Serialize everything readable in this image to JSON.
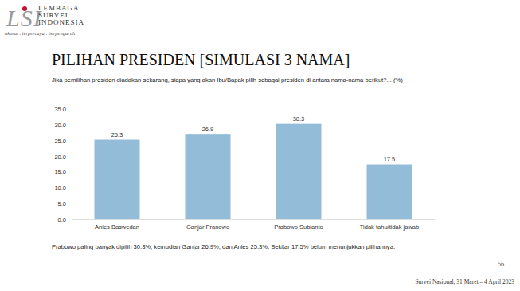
{
  "header": {
    "logo": "LSI",
    "org_name": [
      "LEMBAGA",
      "SURVEI",
      "INDONESIA"
    ],
    "tagline": "akurat . terpercaya . berpengaruh"
  },
  "chart_data": {
    "type": "bar",
    "title": "PILIHAN PRESIDEN [SIMULASI 3 NAMA]",
    "subtitle": "Jika pemilihan presiden diadakan sekarang, siapa yang akan Ibu/Bapak pilih sebagai presiden di antara nama-nama berikut?... (%)",
    "categories": [
      "Anies Baswedan",
      "Ganjar Pranowo",
      "Prabowo Subianto",
      "Tidak tahu/tidak jawab"
    ],
    "values": [
      25.3,
      26.9,
      30.3,
      17.5
    ],
    "color": "#93bcd8",
    "ylim": [
      0,
      35
    ],
    "yticks": [
      {
        "value": 0,
        "label": "0.0"
      },
      {
        "value": 5,
        "label": "5.0"
      },
      {
        "value": 10,
        "label": "10.0"
      },
      {
        "value": 15,
        "label": "15.0"
      },
      {
        "value": 20,
        "label": "20.0"
      },
      {
        "value": 25,
        "label": "25.0"
      },
      {
        "value": 30,
        "label": "30.0"
      },
      {
        "value": 35,
        "label": "35.0"
      }
    ],
    "grid": false,
    "data_labels": true,
    "annotations": [
      "Prabowo paling banyak dipilih 30.3%, kemudian Ganjar 26.9%, dan Anies 25.3%. Sekitar 17.5% belum menunjukkan pilihannya."
    ]
  },
  "footer": {
    "page": "56",
    "source": "Survei Nasional, 31 Maret – 4 April 2023"
  }
}
